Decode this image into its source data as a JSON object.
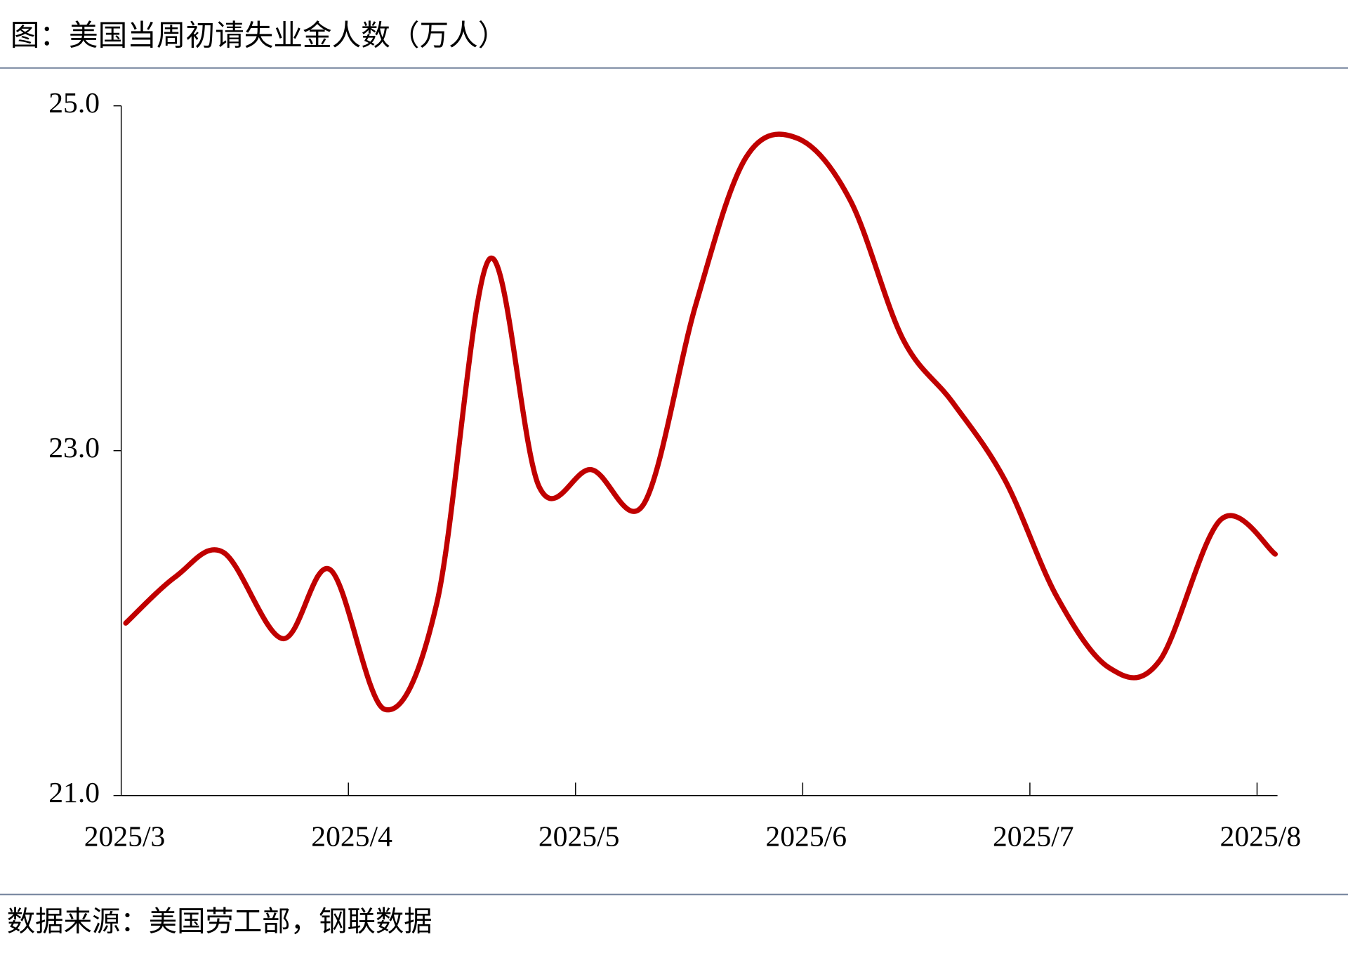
{
  "header": {
    "title": "图：美国当周初请失业金人数（万人）"
  },
  "chart_data": {
    "type": "line",
    "x": [
      3.02,
      3.24,
      3.45,
      3.71,
      3.92,
      4.16,
      4.39,
      4.62,
      4.84,
      5.07,
      5.3,
      5.53,
      5.75,
      5.98,
      6.21,
      6.44,
      6.66,
      6.89,
      7.12,
      7.35,
      7.57,
      7.84,
      8.08
    ],
    "series": [
      {
        "color": "#c00000",
        "values": [
          22.0,
          22.27,
          22.41,
          21.91,
          22.31,
          21.5,
          22.12,
          24.11,
          22.79,
          22.89,
          22.69,
          23.85,
          24.7,
          24.81,
          24.45,
          23.65,
          23.28,
          22.83,
          22.15,
          21.74,
          21.78,
          22.6,
          22.4
        ]
      }
    ],
    "xlim": [
      3,
      8.09
    ],
    "xticks": [
      {
        "value": 3,
        "label": "2025/3"
      },
      {
        "value": 4,
        "label": "2025/4"
      },
      {
        "value": 5,
        "label": "2025/5"
      },
      {
        "value": 6,
        "label": "2025/6"
      },
      {
        "value": 7,
        "label": "2025/7"
      },
      {
        "value": 8,
        "label": "2025/8"
      }
    ],
    "ylim": [
      21,
      25
    ],
    "yticks": [
      {
        "value": 21,
        "label": "21.0"
      },
      {
        "value": 23,
        "label": "23.0"
      },
      {
        "value": 25,
        "label": "25.0"
      }
    ],
    "grid": false
  },
  "footer": {
    "source": "数据来源：美国劳工部，钢联数据"
  }
}
